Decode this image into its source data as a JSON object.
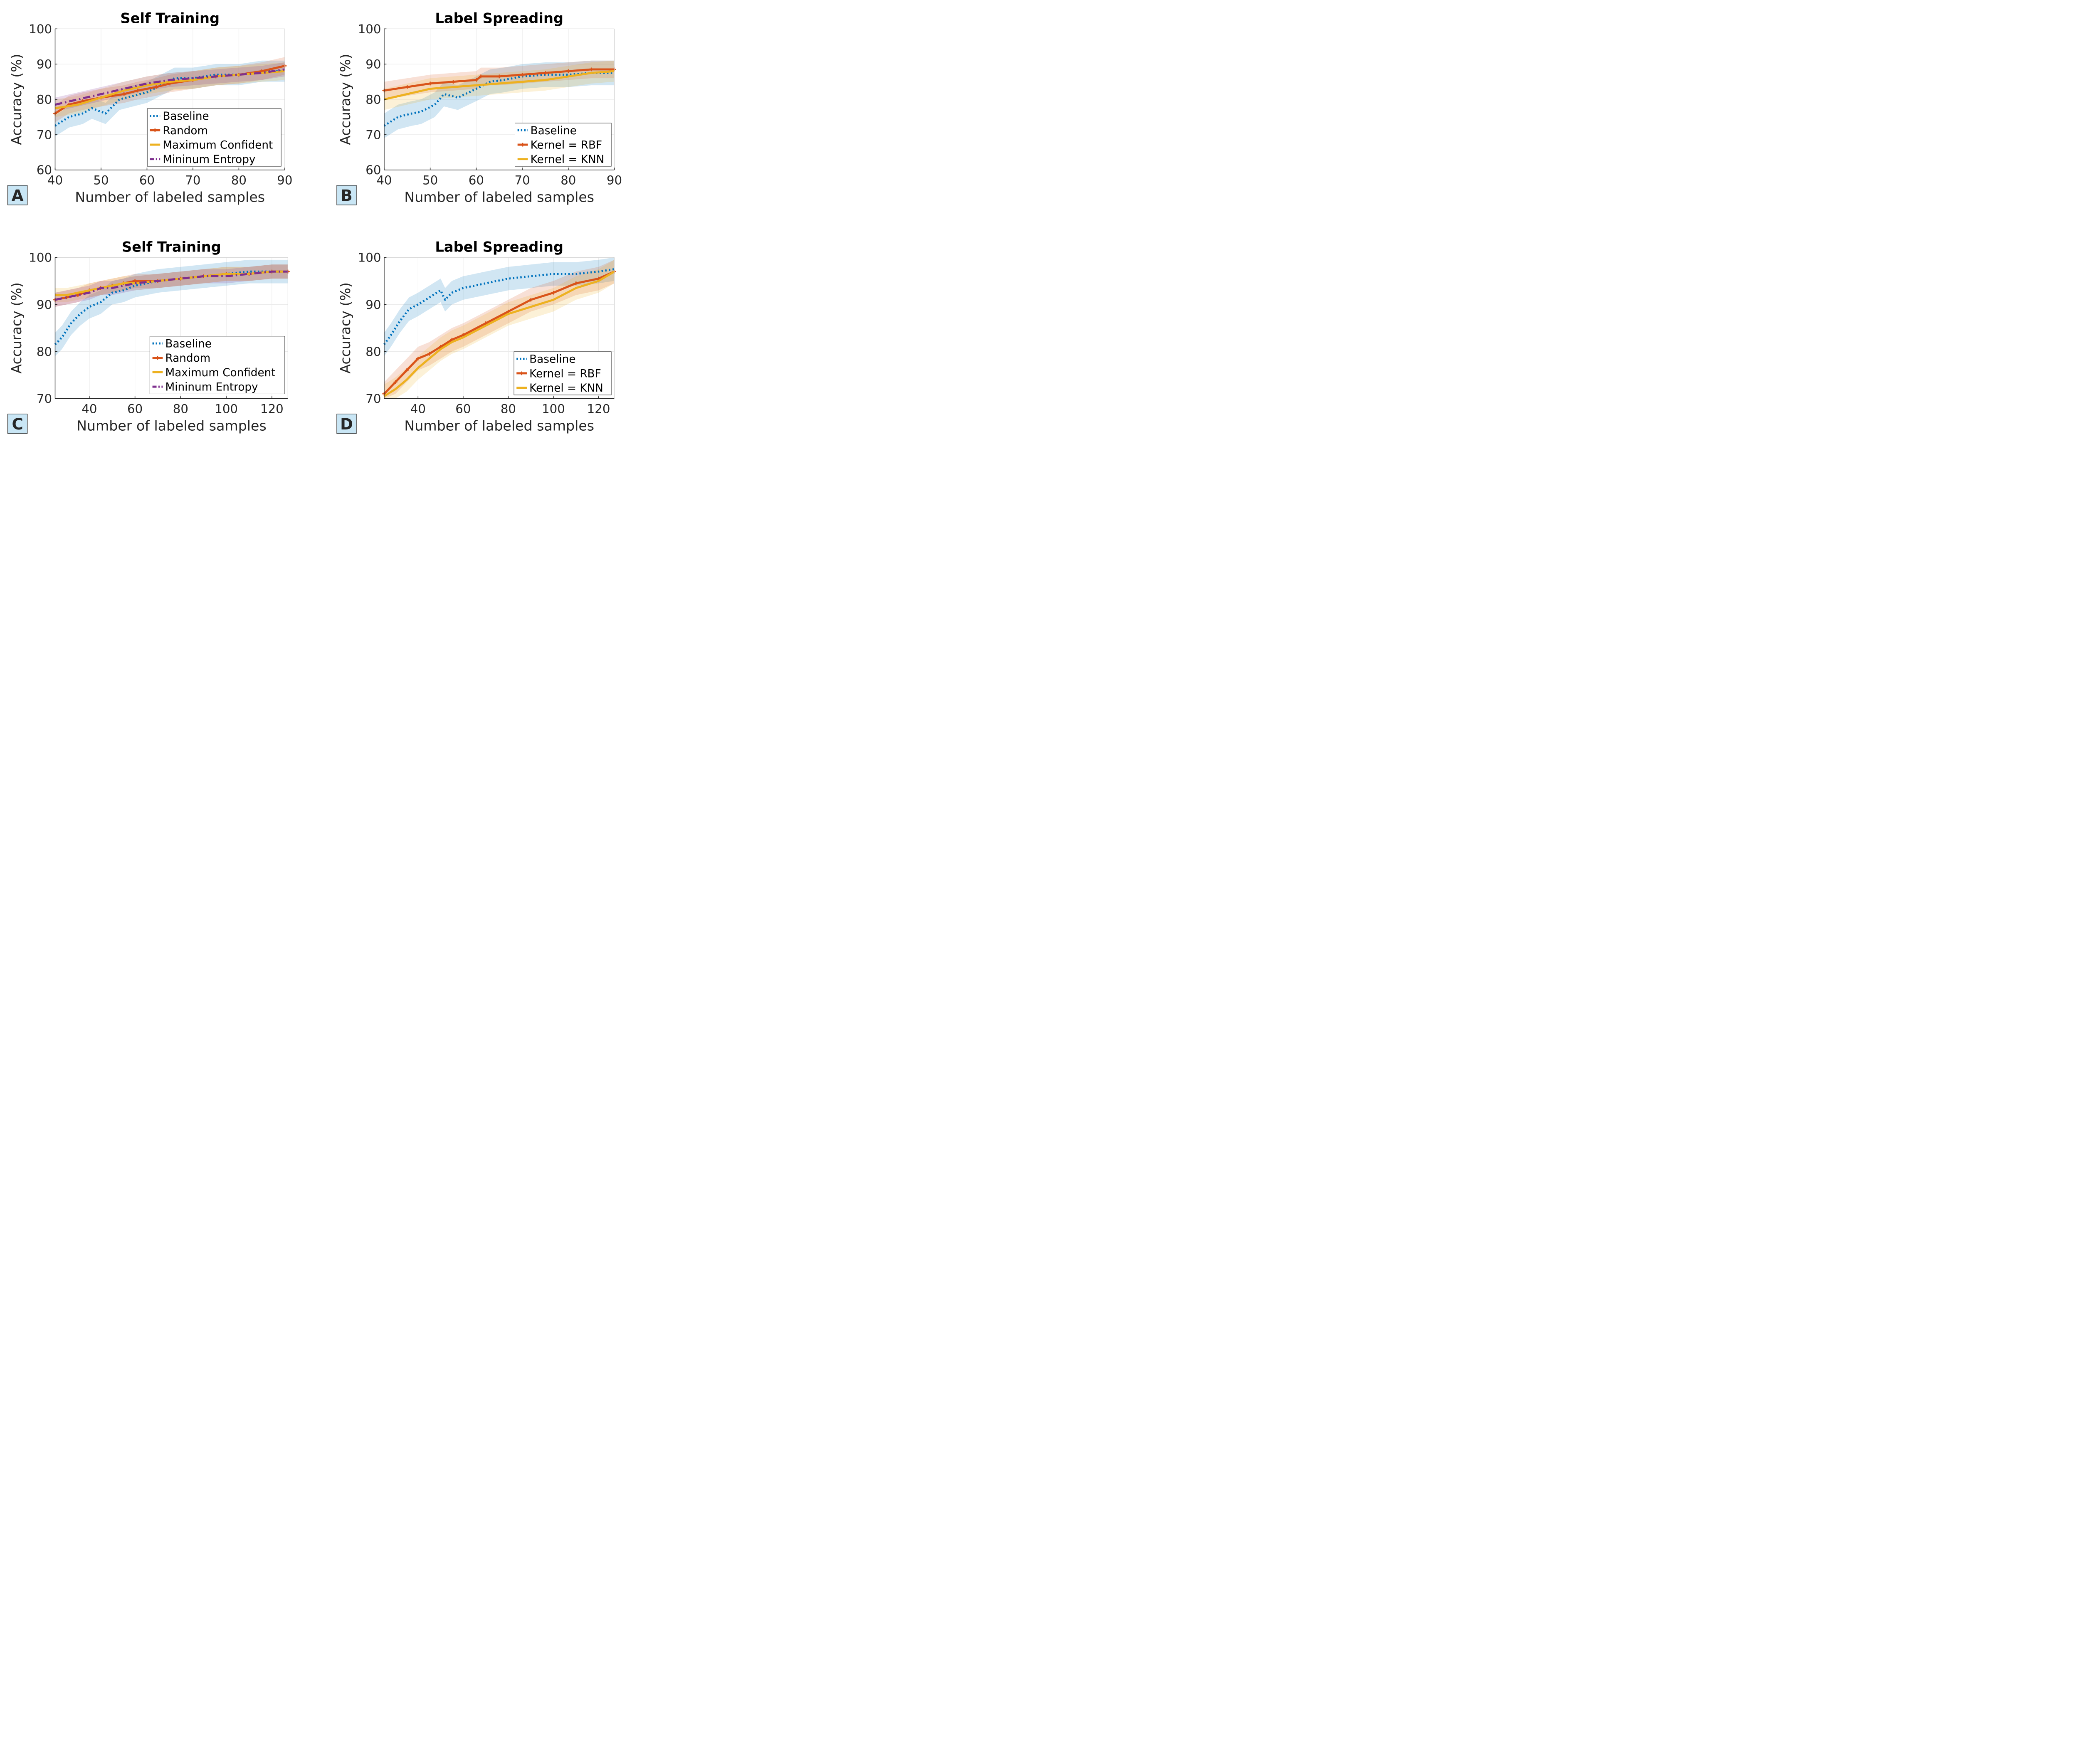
{
  "colors": {
    "baseline": "#0072BD",
    "random": "#D95319",
    "maxconf": "#EDB120",
    "minent": "#7E2F8E",
    "grid": "#ebebeb",
    "axis": "#262626",
    "panel_label_bg": "#c9e6f5"
  },
  "chart_data": [
    {
      "id": "A",
      "type": "line",
      "panel_label": "A",
      "title": "Self Training",
      "xlabel": "Number of labeled samples",
      "ylabel": "Accuracy (%)",
      "xlim": [
        40,
        90
      ],
      "ylim": [
        60,
        100
      ],
      "xticks": [
        40,
        50,
        60,
        70,
        80,
        90
      ],
      "xtick_labels": [
        "40",
        "50",
        "60",
        "70",
        "80",
        "90"
      ],
      "yticks": [
        60,
        70,
        80,
        90,
        100
      ],
      "ytick_labels": [
        "60",
        "70",
        "80",
        "90",
        "100"
      ],
      "legend_position": "center-right",
      "series": [
        {
          "name": "Baseline",
          "color_key": "baseline",
          "style": "dotted",
          "band": 3,
          "x": [
            40,
            43,
            46,
            48,
            51,
            54,
            57,
            60,
            63,
            66,
            70,
            75,
            80,
            85,
            90
          ],
          "y": [
            72.5,
            75,
            76,
            77.5,
            76,
            80,
            81,
            82,
            84,
            86,
            86,
            87,
            87,
            88,
            88
          ]
        },
        {
          "name": "Random",
          "color_key": "random",
          "style": "solid-marker",
          "band": 2.5,
          "x": [
            40,
            43,
            46,
            50,
            55,
            58,
            62,
            65,
            70,
            75,
            80,
            85,
            90
          ],
          "y": [
            76,
            78.5,
            79.5,
            80.5,
            81.5,
            82.5,
            83.5,
            84.5,
            85.5,
            86.5,
            87,
            88,
            89.5
          ]
        },
        {
          "name": "Maximum Confident",
          "color_key": "maxconf",
          "style": "solid",
          "band": 2.5,
          "x": [
            40,
            45,
            50,
            55,
            60,
            65,
            70,
            75,
            80,
            85,
            90
          ],
          "y": [
            77.5,
            78.5,
            80.5,
            82.5,
            84,
            85,
            85.5,
            86.5,
            87,
            87.5,
            88
          ]
        },
        {
          "name": "Mininum Entropy",
          "color_key": "minent",
          "style": "dashdot",
          "band": 2,
          "x": [
            40,
            45,
            50,
            55,
            60,
            65,
            70,
            75,
            80,
            85,
            90
          ],
          "y": [
            78.5,
            80,
            81.5,
            83,
            84.5,
            85.5,
            86,
            86.5,
            87,
            87.5,
            88.5
          ]
        }
      ]
    },
    {
      "id": "B",
      "type": "line",
      "panel_label": "B",
      "title": "Label Spreading",
      "xlabel": "Number of labeled samples",
      "ylabel": "Accuracy (%)",
      "xlim": [
        40,
        90
      ],
      "ylim": [
        60,
        100
      ],
      "xticks": [
        40,
        50,
        60,
        70,
        80,
        90
      ],
      "xtick_labels": [
        "40",
        "50",
        "60",
        "70",
        "80",
        "90"
      ],
      "yticks": [
        60,
        70,
        80,
        90,
        100
      ],
      "ytick_labels": [
        "60",
        "70",
        "80",
        "90",
        "100"
      ],
      "legend_position": "bottom-right",
      "series": [
        {
          "name": "Baseline",
          "color_key": "baseline",
          "style": "dotted",
          "band": 3.5,
          "x": [
            40,
            43,
            46,
            48,
            51,
            53,
            56,
            60,
            63,
            66,
            70,
            75,
            80,
            85,
            90
          ],
          "y": [
            72.5,
            75,
            76,
            76.5,
            78.5,
            81.5,
            80.5,
            83,
            85,
            85.5,
            86.5,
            87,
            87,
            87.5,
            87.5
          ]
        },
        {
          "name": "Kernel = RBF",
          "color_key": "random",
          "style": "solid-marker",
          "band": 2.5,
          "x": [
            40,
            45,
            50,
            55,
            60,
            61,
            65,
            70,
            75,
            80,
            85,
            90
          ],
          "y": [
            82.5,
            83.5,
            84.5,
            85,
            85.5,
            86.5,
            86.5,
            87,
            87.5,
            88,
            88.5,
            88.5
          ]
        },
        {
          "name": "Kernel = KNN",
          "color_key": "maxconf",
          "style": "solid",
          "band": 3,
          "x": [
            40,
            45,
            50,
            55,
            60,
            65,
            70,
            75,
            80,
            85,
            90
          ],
          "y": [
            80,
            81.5,
            83,
            83.5,
            84,
            84.5,
            85,
            85.5,
            86.5,
            87.5,
            88
          ]
        }
      ]
    },
    {
      "id": "C",
      "type": "line",
      "panel_label": "C",
      "title": "Self Training",
      "xlabel": "Number of labeled samples",
      "ylabel": "Accuracy (%)",
      "xlim": [
        25,
        127
      ],
      "ylim": [
        70,
        100
      ],
      "xticks": [
        40,
        60,
        80,
        100,
        120
      ],
      "xtick_labels": [
        "40",
        "60",
        "80",
        "100",
        "120"
      ],
      "yticks": [
        70,
        80,
        90,
        100
      ],
      "ytick_labels": [
        "70",
        "80",
        "90",
        "100"
      ],
      "legend_position": "bottom-right",
      "series": [
        {
          "name": "Baseline",
          "color_key": "baseline",
          "style": "dotted",
          "band": 2.5,
          "x": [
            25,
            28,
            32,
            36,
            40,
            45,
            50,
            55,
            60,
            70,
            80,
            90,
            100,
            110,
            120,
            127
          ],
          "y": [
            81.5,
            83,
            86,
            88,
            89.5,
            90.5,
            92.5,
            93,
            94,
            95,
            95.5,
            96,
            96.5,
            97,
            97,
            97
          ]
        },
        {
          "name": "Random",
          "color_key": "random",
          "style": "solid-marker",
          "band": 1.5,
          "x": [
            25,
            30,
            35,
            40,
            45,
            50,
            55,
            60,
            70,
            80,
            90,
            100,
            110,
            120,
            127
          ],
          "y": [
            91,
            91.5,
            92,
            93,
            93.5,
            94,
            94.5,
            95,
            95,
            95.5,
            96,
            96.5,
            96.5,
            97,
            97
          ]
        },
        {
          "name": "Maximum Confident",
          "color_key": "maxconf",
          "style": "solid",
          "band": 1.5,
          "x": [
            25,
            30,
            35,
            40,
            45,
            50,
            55,
            60,
            70,
            80,
            90,
            100,
            110,
            120,
            127
          ],
          "y": [
            92,
            92,
            92.5,
            93,
            93.5,
            94,
            94.5,
            94.5,
            95,
            95.5,
            96,
            96.5,
            96.5,
            97,
            97
          ]
        },
        {
          "name": "Mininum Entropy",
          "color_key": "minent",
          "style": "dashdot",
          "band": 1.5,
          "x": [
            25,
            30,
            35,
            40,
            45,
            50,
            55,
            60,
            70,
            80,
            90,
            100,
            110,
            120,
            127
          ],
          "y": [
            91,
            91.5,
            92,
            92.5,
            93.5,
            93.5,
            94,
            94.5,
            95,
            95.5,
            96,
            96,
            96.5,
            97,
            97
          ]
        }
      ]
    },
    {
      "id": "D",
      "type": "line",
      "panel_label": "D",
      "title": "Label Spreading",
      "xlabel": "Number of labeled samples",
      "ylabel": "Accuracy (%)",
      "xlim": [
        25,
        127
      ],
      "ylim": [
        70,
        100
      ],
      "xticks": [
        40,
        60,
        80,
        100,
        120
      ],
      "xtick_labels": [
        "40",
        "60",
        "80",
        "100",
        "120"
      ],
      "yticks": [
        70,
        80,
        90,
        100
      ],
      "ytick_labels": [
        "70",
        "80",
        "90",
        "100"
      ],
      "legend_position": "bottom-right",
      "series": [
        {
          "name": "Baseline",
          "color_key": "baseline",
          "style": "dotted",
          "band": 2.5,
          "x": [
            25,
            28,
            32,
            36,
            40,
            45,
            50,
            52,
            55,
            60,
            65,
            70,
            80,
            90,
            100,
            110,
            120,
            127
          ],
          "y": [
            81.5,
            83.5,
            86.5,
            89,
            90,
            91.5,
            93,
            91,
            92.5,
            93.5,
            94,
            94.5,
            95.5,
            96,
            96.5,
            96.5,
            97,
            97.5
          ]
        },
        {
          "name": "Kernel = RBF",
          "color_key": "random",
          "style": "solid-marker",
          "band": 2.5,
          "x": [
            25,
            30,
            35,
            40,
            45,
            50,
            55,
            60,
            70,
            80,
            90,
            100,
            110,
            120,
            127
          ],
          "y": [
            71,
            73.5,
            76,
            78.5,
            79.5,
            81,
            82.5,
            83.5,
            86,
            88.5,
            91,
            92.5,
            94.5,
            95.5,
            97
          ]
        },
        {
          "name": "Kernel = KNN",
          "color_key": "maxconf",
          "style": "solid",
          "band": 2.5,
          "x": [
            25,
            30,
            35,
            40,
            45,
            50,
            55,
            60,
            70,
            80,
            90,
            100,
            110,
            120,
            127
          ],
          "y": [
            70.5,
            72,
            74,
            76.5,
            78.5,
            80.5,
            82,
            83,
            85.5,
            88,
            89.5,
            91,
            93.5,
            95,
            97
          ]
        }
      ]
    }
  ]
}
